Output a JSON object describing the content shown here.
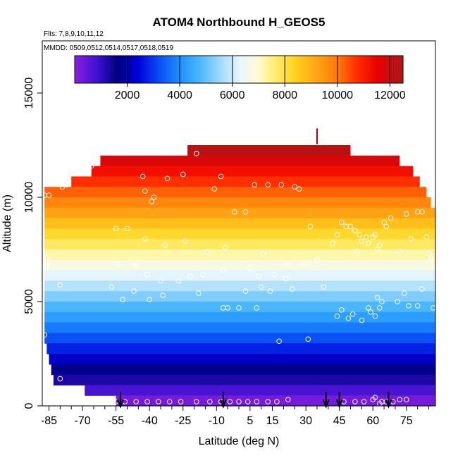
{
  "chart_data": {
    "type": "heatmap",
    "title": "ATOM4 Northbound H_GEOS5",
    "note_flights": "Flts: 7,8,9,10,11,12",
    "note_dates": "MMDD: 0509,0512,0514,0517,0518,0519",
    "xlabel": "Latitude (deg N)",
    "ylabel": "Altitude (m)",
    "xlim": [
      -88,
      88
    ],
    "ylim": [
      0,
      17500
    ],
    "x_ticks": [
      -85,
      -70,
      -55,
      -40,
      -25,
      -10,
      5,
      15,
      30,
      45,
      60,
      75
    ],
    "x_minor_ticks": [
      -80,
      -75,
      -65,
      -60,
      -50,
      -45,
      -35,
      -30,
      -20,
      -15,
      -5,
      0,
      10,
      20,
      25,
      35,
      40,
      50,
      55,
      65,
      70,
      80,
      85
    ],
    "y_ticks": [
      0,
      5000,
      10000,
      15000
    ],
    "colorbar": {
      "range": [
        0,
        12500
      ],
      "ticks": [
        2000,
        4000,
        6000,
        8000,
        10000,
        12000
      ],
      "gridlines": [
        2000,
        4000,
        6000,
        8000,
        10000,
        12000
      ],
      "stops": [
        {
          "v": 0,
          "c": "#8b1fe0"
        },
        {
          "v": 900,
          "c": "#3a10d0"
        },
        {
          "v": 1600,
          "c": "#00007a"
        },
        {
          "v": 2400,
          "c": "#0000d8"
        },
        {
          "v": 3200,
          "c": "#0a4cf4"
        },
        {
          "v": 4000,
          "c": "#1e90ff"
        },
        {
          "v": 4800,
          "c": "#4fb8fb"
        },
        {
          "v": 5600,
          "c": "#a6dcfa"
        },
        {
          "v": 6300,
          "c": "#e9f6ff"
        },
        {
          "v": 7000,
          "c": "#fffbd2"
        },
        {
          "v": 7600,
          "c": "#ffee70"
        },
        {
          "v": 8400,
          "c": "#ffd21e"
        },
        {
          "v": 9200,
          "c": "#ffa514"
        },
        {
          "v": 10000,
          "c": "#ff7a0a"
        },
        {
          "v": 10800,
          "c": "#ff2a00"
        },
        {
          "v": 11500,
          "c": "#ea0000"
        },
        {
          "v": 12000,
          "c": "#c80d0d"
        },
        {
          "v": 12500,
          "c": "#a81818"
        }
      ]
    },
    "field": {
      "band_height": 500,
      "top_altitude": 12500,
      "extent": [
        {
          "top": 12500,
          "x0": -23,
          "x1": 50
        },
        {
          "top": 12000,
          "x0": -62,
          "x1": 72
        },
        {
          "top": 11500,
          "x0": -66,
          "x1": 78
        },
        {
          "top": 11000,
          "x0": -75,
          "x1": 81
        },
        {
          "top": 10500,
          "x0": -87,
          "x1": 84
        },
        {
          "top": 10000,
          "x0": -87,
          "x1": 86
        },
        {
          "top": 9500,
          "x0": -87,
          "x1": 88
        },
        {
          "top": 3500,
          "x0": -87,
          "x1": 88
        },
        {
          "top": 3000,
          "x0": -86,
          "x1": 88
        },
        {
          "top": 2500,
          "x0": -85,
          "x1": 88
        },
        {
          "top": 2000,
          "x0": -84,
          "x1": 88
        },
        {
          "top": 1500,
          "x0": -83,
          "x1": 88
        },
        {
          "top": 1000,
          "x0": -69,
          "x1": 88
        },
        {
          "top": 500,
          "x0": -55,
          "x1": 88
        }
      ]
    },
    "observations": [
      [
        -87,
        10100
      ],
      [
        -85,
        10100
      ],
      [
        -79,
        10500
      ],
      [
        -77,
        10600
      ],
      [
        -75,
        11300
      ],
      [
        -73,
        11300
      ],
      [
        -70,
        11400
      ],
      [
        -66,
        11500
      ],
      [
        -43,
        11000
      ],
      [
        -42,
        10300
      ],
      [
        -38,
        10000
      ],
      [
        -39,
        9800
      ],
      [
        -32,
        10900
      ],
      [
        -25,
        11100
      ],
      [
        -11,
        10400
      ],
      [
        -8,
        11000
      ],
      [
        -2,
        9300
      ],
      [
        3,
        9300
      ],
      [
        7,
        10600
      ],
      [
        13,
        10600
      ],
      [
        19,
        10600
      ],
      [
        25,
        10500
      ],
      [
        27,
        10400
      ],
      [
        -19,
        12100
      ],
      [
        -55,
        8500
      ],
      [
        -50,
        8500
      ],
      [
        -42,
        8000
      ],
      [
        -33,
        7700
      ],
      [
        -24,
        7900
      ],
      [
        -14,
        7400
      ],
      [
        -6,
        7600
      ],
      [
        11,
        7300
      ],
      [
        22,
        6700
      ],
      [
        29,
        6800
      ],
      [
        32,
        8600
      ],
      [
        35,
        7000
      ],
      [
        -86,
        7100
      ],
      [
        -86,
        6700
      ],
      [
        -54,
        6800
      ],
      [
        -46,
        6700
      ],
      [
        -41,
        6300
      ],
      [
        -35,
        6000
      ],
      [
        -27,
        6000
      ],
      [
        -22,
        6200
      ],
      [
        -16,
        6300
      ],
      [
        -7,
        6500
      ],
      [
        5,
        6600
      ],
      [
        9,
        6200
      ],
      [
        16,
        6300
      ],
      [
        21,
        6100
      ],
      [
        42,
        7800
      ],
      [
        44,
        8200
      ],
      [
        46,
        8800
      ],
      [
        48,
        8600
      ],
      [
        50,
        8600
      ],
      [
        52,
        8400
      ],
      [
        53,
        7400
      ],
      [
        54,
        8200
      ],
      [
        55,
        7900
      ],
      [
        57,
        8100
      ],
      [
        58,
        7800
      ],
      [
        60,
        8100
      ],
      [
        61,
        8200
      ],
      [
        62,
        7500
      ],
      [
        63,
        7700
      ],
      [
        65,
        8800
      ],
      [
        66,
        8600
      ],
      [
        68,
        9000
      ],
      [
        72,
        7400
      ],
      [
        75,
        9200
      ],
      [
        77,
        8000
      ],
      [
        80,
        9300
      ],
      [
        82,
        9300
      ],
      [
        84,
        8100
      ],
      [
        85,
        7300
      ],
      [
        86,
        7000
      ],
      [
        -80,
        5800
      ],
      [
        -57,
        5700
      ],
      [
        -52,
        5100
      ],
      [
        -47,
        5500
      ],
      [
        -40,
        5100
      ],
      [
        -34,
        5300
      ],
      [
        -18,
        5400
      ],
      [
        -7,
        4700
      ],
      [
        -5,
        4700
      ],
      [
        0,
        4700
      ],
      [
        3,
        5500
      ],
      [
        10,
        5700
      ],
      [
        8,
        4700
      ],
      [
        14,
        5500
      ],
      [
        24,
        5600
      ],
      [
        38,
        5700
      ],
      [
        44,
        4300
      ],
      [
        46,
        4600
      ],
      [
        49,
        4200
      ],
      [
        51,
        4400
      ],
      [
        55,
        4100
      ],
      [
        58,
        4700
      ],
      [
        59,
        4500
      ],
      [
        61,
        4300
      ],
      [
        62,
        5200
      ],
      [
        63,
        4700
      ],
      [
        64,
        5000
      ],
      [
        71,
        5000
      ],
      [
        74,
        5400
      ],
      [
        76,
        4800
      ],
      [
        80,
        4800
      ],
      [
        82,
        5600
      ],
      [
        87,
        4700
      ],
      [
        18,
        3100
      ],
      [
        31,
        3200
      ],
      [
        -87,
        3400
      ],
      [
        -80,
        1300
      ],
      [
        -55,
        200
      ],
      [
        -51,
        200
      ],
      [
        -46,
        200
      ],
      [
        -41,
        200
      ],
      [
        -36,
        200
      ],
      [
        -31,
        200
      ],
      [
        -26,
        200
      ],
      [
        -19,
        200
      ],
      [
        -13,
        200
      ],
      [
        -8,
        200
      ],
      [
        -4,
        200
      ],
      [
        0,
        200
      ],
      [
        4,
        200
      ],
      [
        8,
        200
      ],
      [
        13,
        200
      ],
      [
        17,
        200
      ],
      [
        22,
        300
      ],
      [
        47,
        200
      ],
      [
        52,
        200
      ],
      [
        56,
        200
      ],
      [
        60,
        300
      ],
      [
        61,
        400
      ],
      [
        63,
        100
      ],
      [
        64,
        200
      ],
      [
        66,
        200
      ],
      [
        69,
        200
      ],
      [
        72,
        300
      ],
      [
        75,
        300
      ]
    ],
    "arrows_latitude": [
      -53,
      -7,
      39,
      45,
      67
    ],
    "marker_latitude": 35
  }
}
